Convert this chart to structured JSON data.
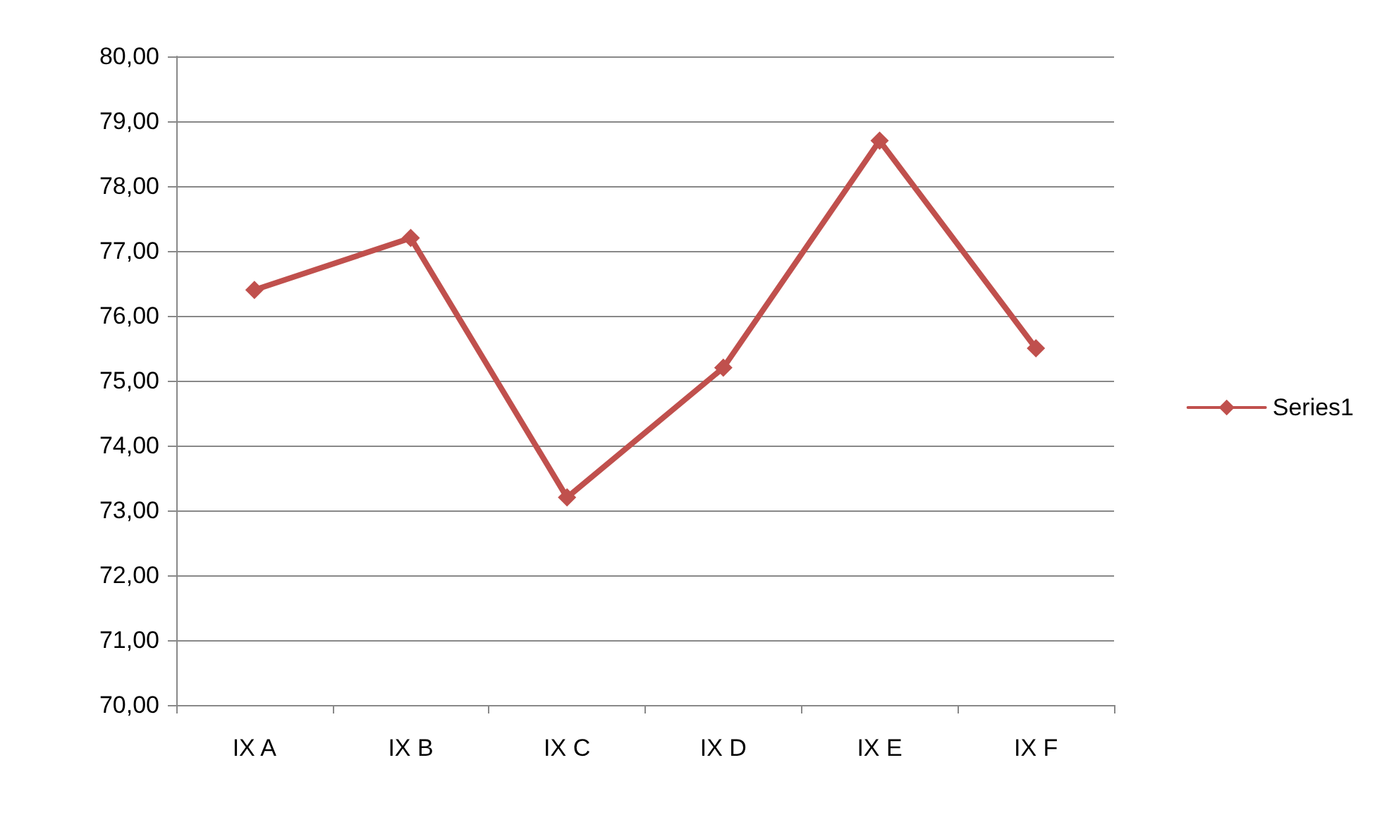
{
  "chart_data": {
    "type": "line",
    "categories": [
      "IX A",
      "IX B",
      "IX C",
      "IX D",
      "IX E",
      "IX F"
    ],
    "series": [
      {
        "name": "Series1",
        "color": "#c0504d",
        "values": [
          76.4,
          77.2,
          73.2,
          75.2,
          78.7,
          75.5
        ]
      }
    ],
    "ylim": [
      70,
      80
    ],
    "yticks": [
      {
        "value": 70,
        "label": "70,00"
      },
      {
        "value": 71,
        "label": "71,00"
      },
      {
        "value": 72,
        "label": "72,00"
      },
      {
        "value": 73,
        "label": "73,00"
      },
      {
        "value": 74,
        "label": "74,00"
      },
      {
        "value": 75,
        "label": "75,00"
      },
      {
        "value": 76,
        "label": "76,00"
      },
      {
        "value": 77,
        "label": "77,00"
      },
      {
        "value": 78,
        "label": "78,00"
      },
      {
        "value": 79,
        "label": "79,00"
      },
      {
        "value": 80,
        "label": "80,00"
      }
    ],
    "grid": "y",
    "legend": "right",
    "marker": "diamond",
    "line_style": "solid"
  }
}
